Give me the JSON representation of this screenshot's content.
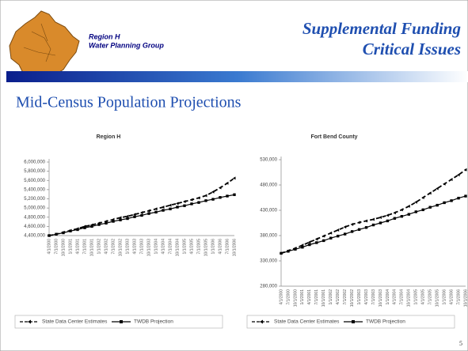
{
  "slide": {
    "group_line1": "Region H",
    "group_line2": "Water Planning Group",
    "title_line1": "Supplemental Funding",
    "title_line2": "Critical Issues",
    "heading": "Mid-Census Population Projections",
    "page_number": "5"
  },
  "chart_data": [
    {
      "type": "line",
      "title": "Region H",
      "categories": [
        "4/1/2000",
        "7/1/2000",
        "10/1/2000",
        "1/1/2001",
        "4/1/2001",
        "7/1/2001",
        "10/1/2001",
        "1/1/2002",
        "4/1/2002",
        "7/1/2002",
        "10/1/2002",
        "1/1/2003",
        "4/1/2003",
        "7/1/2003",
        "10/1/2003",
        "1/1/2004",
        "4/1/2004",
        "7/1/2004",
        "10/1/2004",
        "1/1/2005",
        "4/1/2005",
        "7/1/2005",
        "10/1/2005",
        "1/1/2006",
        "4/1/2006",
        "7/1/2006",
        "10/1/2006"
      ],
      "series": [
        {
          "name": "State Data Center Estimates",
          "color": "#000000",
          "style": "dashed",
          "values": [
            4400000,
            4430000,
            4470000,
            4510000,
            4550000,
            4600000,
            4630000,
            4670000,
            4710000,
            4750000,
            4790000,
            4820000,
            4860000,
            4900000,
            4940000,
            4980000,
            5020000,
            5060000,
            5100000,
            5140000,
            5180000,
            5220000,
            5270000,
            5350000,
            5440000,
            5540000,
            5650000
          ]
        },
        {
          "name": "TWDB Projection",
          "color": "#000000",
          "style": "solid",
          "values": [
            4400000,
            4430000,
            4460000,
            4500000,
            4530000,
            4570000,
            4600000,
            4640000,
            4670000,
            4710000,
            4740000,
            4770000,
            4810000,
            4840000,
            4880000,
            4910000,
            4950000,
            4980000,
            5020000,
            5050000,
            5090000,
            5120000,
            5160000,
            5190000,
            5230000,
            5260000,
            5290000
          ]
        }
      ],
      "ylim": [
        4400000,
        6000000
      ],
      "yticks": [
        {
          "value": 4400000,
          "label": "4,400,000"
        },
        {
          "value": 4600000,
          "label": "4,600,000"
        },
        {
          "value": 4800000,
          "label": "4,800,000"
        },
        {
          "value": 5000000,
          "label": "5,000,000"
        },
        {
          "value": 5200000,
          "label": "5,200,000"
        },
        {
          "value": 5400000,
          "label": "5,400,000"
        },
        {
          "value": 5600000,
          "label": "5,600,000"
        },
        {
          "value": 5800000,
          "label": "5,800,000"
        },
        {
          "value": 6000000,
          "label": "6,000,000"
        }
      ],
      "legend": "bottom"
    },
    {
      "type": "line",
      "title": "Fort Bend County",
      "categories": [
        "4/1/2000",
        "7/1/2000",
        "10/1/2000",
        "1/1/2001",
        "4/1/2001",
        "7/1/2001",
        "10/1/2001",
        "1/1/2002",
        "4/1/2002",
        "7/1/2002",
        "10/1/2002",
        "1/1/2003",
        "4/1/2003",
        "7/1/2003",
        "10/1/2003",
        "1/1/2004",
        "4/1/2004",
        "7/1/2004",
        "10/1/2004",
        "1/1/2005",
        "4/1/2005",
        "7/1/2005",
        "10/1/2005",
        "1/1/2006",
        "4/1/2006",
        "7/1/2006",
        "10/1/2006"
      ],
      "series": [
        {
          "name": "State Data Center Estimates",
          "color": "#000000",
          "style": "dashed",
          "values": [
            345000,
            350000,
            355000,
            361000,
            367000,
            373000,
            379000,
            385000,
            391000,
            397000,
            402000,
            406000,
            409000,
            412000,
            416000,
            420000,
            425000,
            431000,
            438000,
            446000,
            455000,
            464000,
            473000,
            482000,
            491000,
            500000,
            510000
          ]
        },
        {
          "name": "TWDB Projection",
          "color": "#000000",
          "style": "solid",
          "values": [
            345000,
            349000,
            353000,
            357000,
            362000,
            366000,
            370000,
            375000,
            379000,
            383000,
            388000,
            392000,
            396000,
            401000,
            405000,
            409000,
            414000,
            418000,
            422000,
            427000,
            431000,
            436000,
            440000,
            445000,
            449000,
            454000,
            458000
          ]
        }
      ],
      "ylim": [
        280000,
        530000
      ],
      "yticks": [
        {
          "value": 280000,
          "label": "280,000"
        },
        {
          "value": 330000,
          "label": "330,000"
        },
        {
          "value": 380000,
          "label": "380,000"
        },
        {
          "value": 430000,
          "label": "430,000"
        },
        {
          "value": 480000,
          "label": "480,000"
        },
        {
          "value": 530000,
          "label": "530,000"
        }
      ],
      "legend": "bottom"
    }
  ]
}
